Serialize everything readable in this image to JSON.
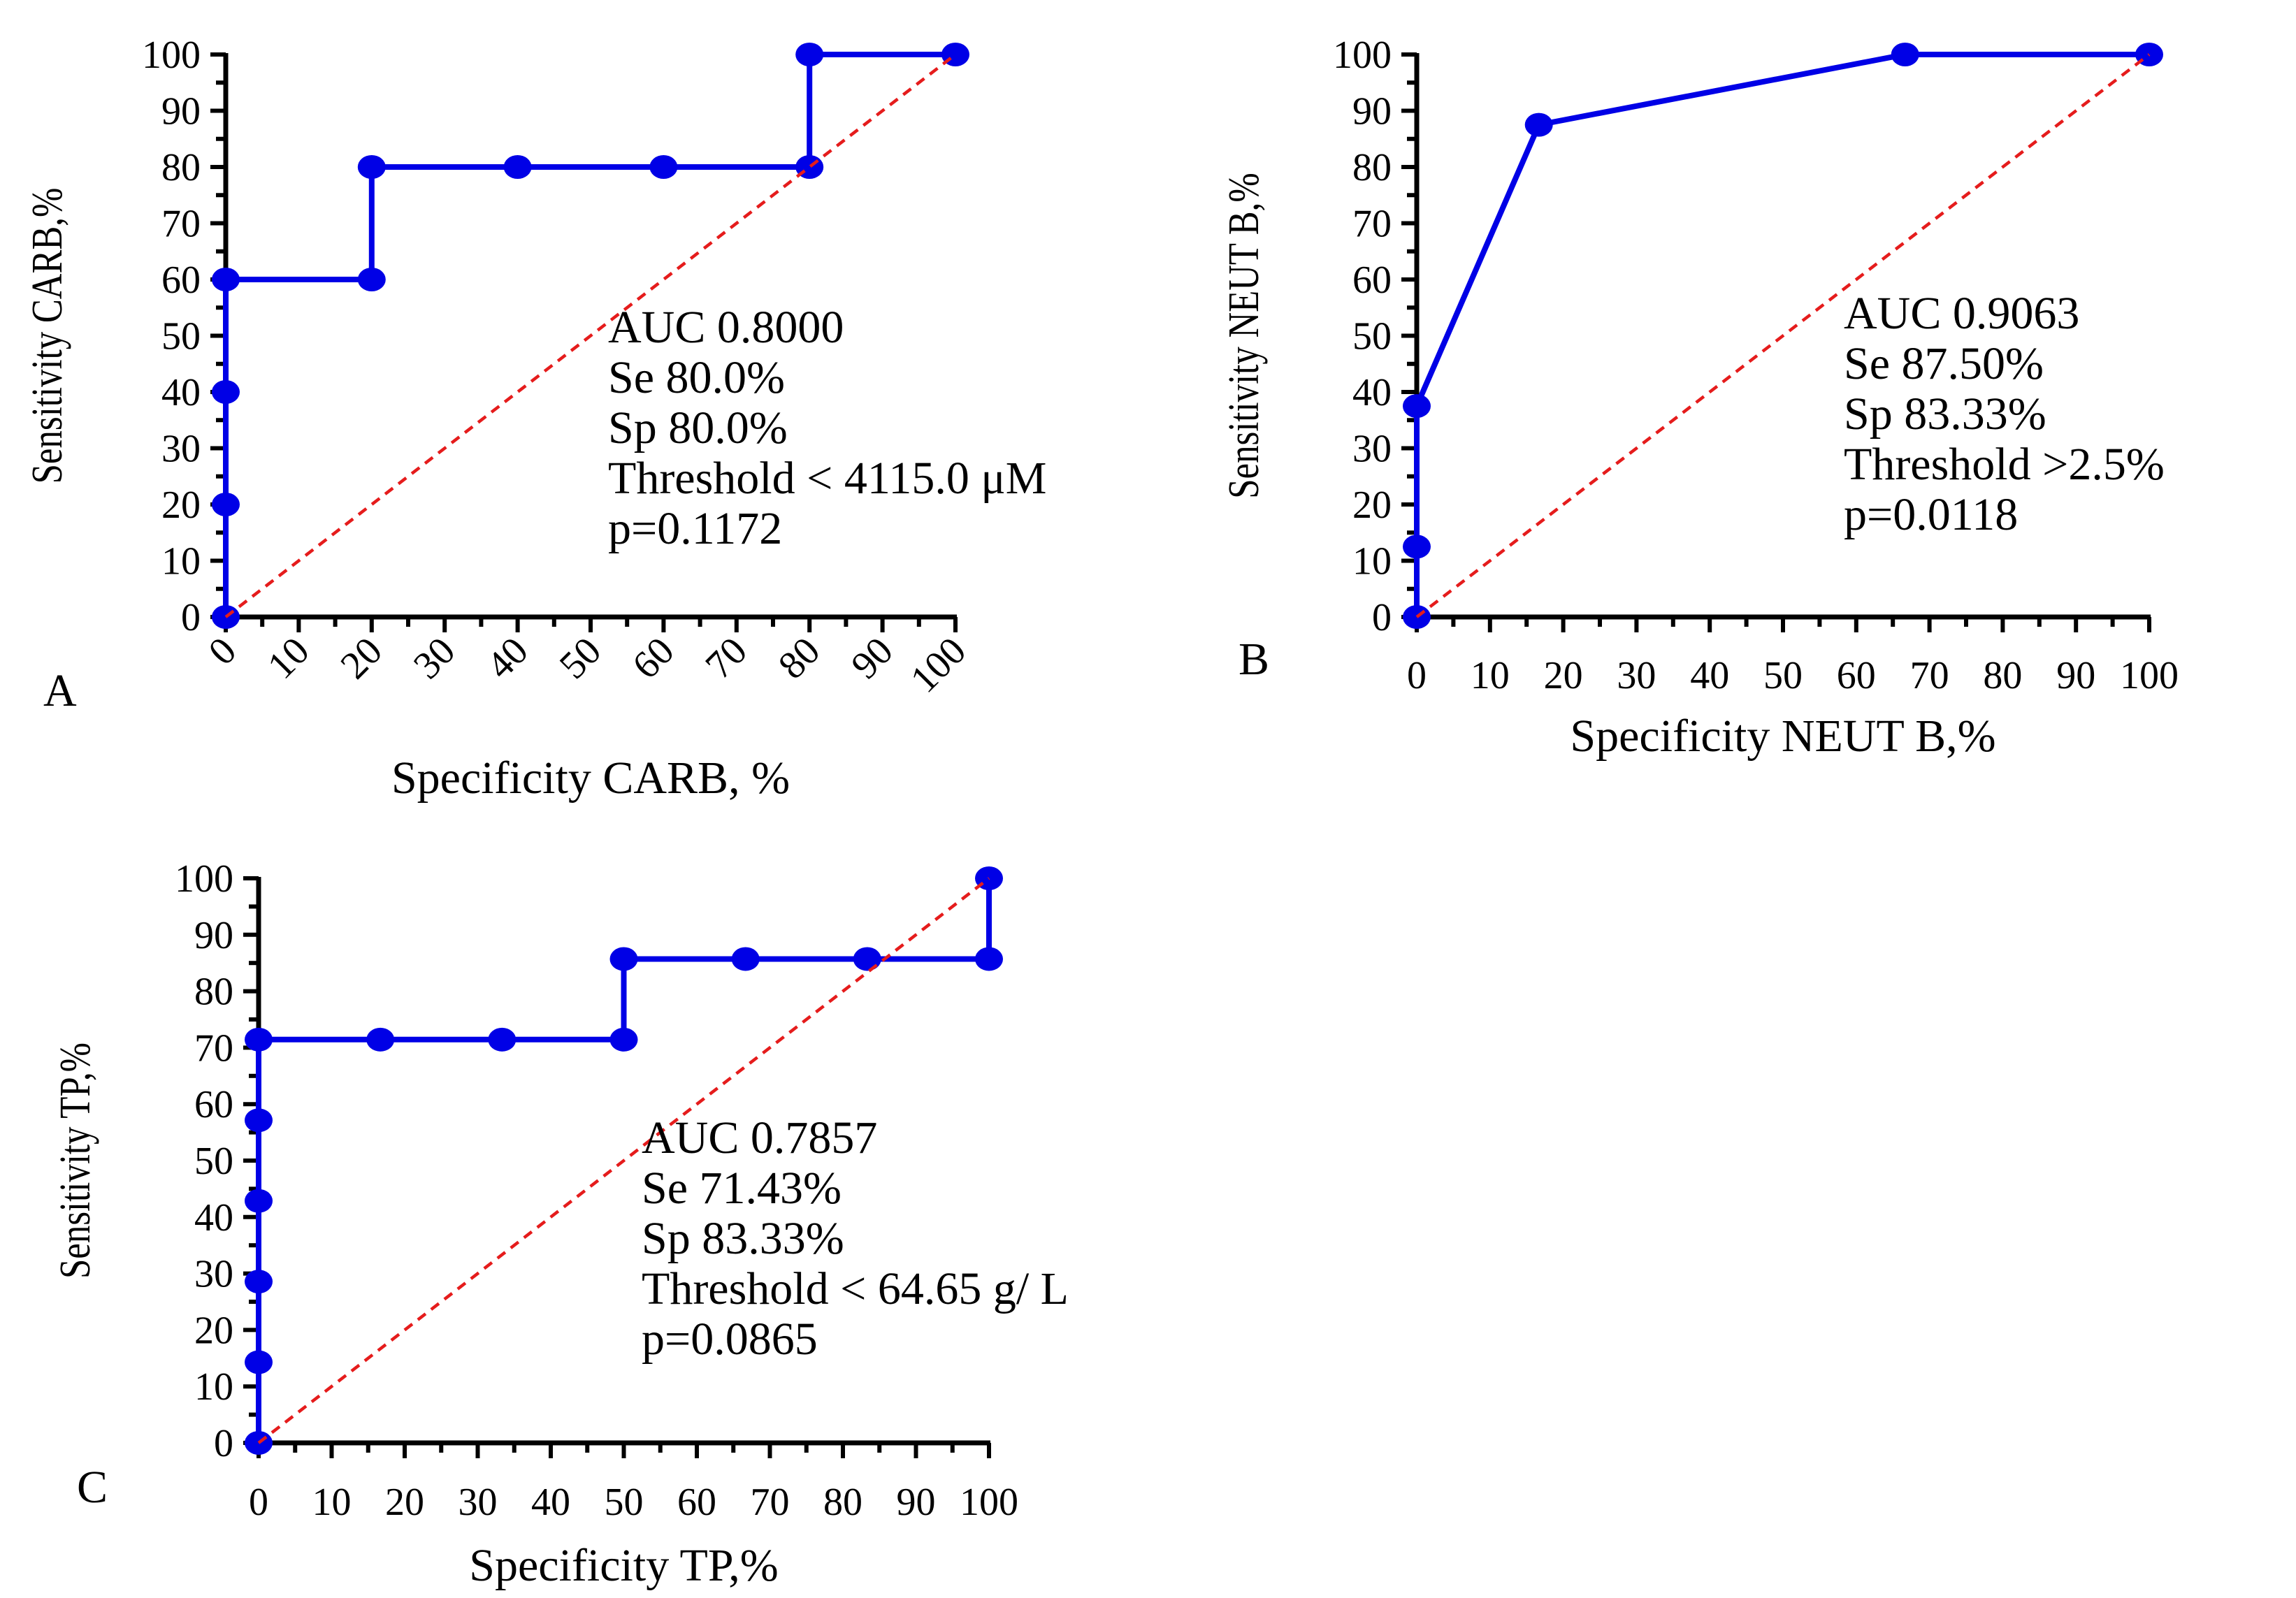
{
  "chart_data": [
    {
      "type": "line",
      "panel_label": "A",
      "title": "",
      "xlabel": "Specificity CARB, %",
      "ylabel": "Sensitivity CARB,%",
      "xlim": [
        0,
        100
      ],
      "ylim": [
        0,
        100
      ],
      "x_tick_labels": [
        "0",
        "10",
        "20",
        "30",
        "40",
        "50",
        "60",
        "70",
        "80",
        "90",
        "100"
      ],
      "y_tick_labels": [
        "0",
        "10",
        "20",
        "30",
        "40",
        "50",
        "60",
        "70",
        "80",
        "90",
        "100"
      ],
      "x_tick_rotated": true,
      "series": [
        {
          "name": "ROC curve",
          "color": "#0000e6",
          "x": [
            0,
            0,
            0,
            0,
            20,
            20,
            40,
            60,
            80,
            80,
            100
          ],
          "y": [
            0,
            20,
            40,
            60,
            60,
            80,
            80,
            80,
            80,
            100,
            100
          ]
        },
        {
          "name": "Reference line",
          "color": "#e51c1c",
          "style": "dashed",
          "x": [
            0,
            100
          ],
          "y": [
            0,
            100
          ]
        }
      ],
      "annotations": [
        "AUC 0.8000",
        "Se 80.0%",
        "Sp 80.0%",
        "Threshold  < 4115.0 μM",
        "p=0.1172"
      ]
    },
    {
      "type": "line",
      "panel_label": "B",
      "title": "",
      "xlabel": "Specificity NEUT B,%",
      "ylabel": "Sensitivity NEUT B,%",
      "xlim": [
        0,
        100
      ],
      "ylim": [
        0,
        100
      ],
      "x_tick_labels": [
        "0",
        "10",
        "20",
        "30",
        "40",
        "50",
        "60",
        "70",
        "80",
        "90",
        "100"
      ],
      "y_tick_labels": [
        "0",
        "10",
        "20",
        "30",
        "40",
        "50",
        "60",
        "70",
        "80",
        "90",
        "100"
      ],
      "x_tick_rotated": false,
      "series": [
        {
          "name": "ROC curve",
          "color": "#0000e6",
          "x": [
            0,
            0,
            0,
            16.67,
            66.67,
            100
          ],
          "y": [
            0,
            12.5,
            37.5,
            87.5,
            100,
            100
          ]
        },
        {
          "name": "Reference line",
          "color": "#e51c1c",
          "style": "dashed",
          "x": [
            0,
            100
          ],
          "y": [
            0,
            100
          ]
        }
      ],
      "annotations": [
        "AUC 0.9063",
        "Se 87.50%",
        "Sp 83.33%",
        "Threshold  >2.5%",
        "p=0.0118"
      ]
    },
    {
      "type": "line",
      "panel_label": "C",
      "title": "",
      "xlabel": "Specificity TP,%",
      "ylabel": "Sensitivity TP,%",
      "xlim": [
        0,
        100
      ],
      "ylim": [
        0,
        100
      ],
      "x_tick_labels": [
        "0",
        "10",
        "20",
        "30",
        "40",
        "50",
        "60",
        "70",
        "80",
        "90",
        "100"
      ],
      "y_tick_labels": [
        "0",
        "10",
        "20",
        "30",
        "40",
        "50",
        "60",
        "70",
        "80",
        "90",
        "100"
      ],
      "x_tick_rotated": false,
      "series": [
        {
          "name": "ROC curve",
          "color": "#0000e6",
          "x": [
            0,
            0,
            0,
            0,
            0,
            0,
            16.67,
            33.33,
            50,
            50,
            66.67,
            83.33,
            100,
            100
          ],
          "y": [
            0,
            14.29,
            28.57,
            42.86,
            57.14,
            71.43,
            71.43,
            71.43,
            71.43,
            85.71,
            85.71,
            85.71,
            85.71,
            100
          ]
        },
        {
          "name": "Reference line",
          "color": "#e51c1c",
          "style": "dashed",
          "x": [
            0,
            100
          ],
          "y": [
            0,
            100
          ]
        }
      ],
      "annotations": [
        "AUC 0.7857",
        "Se 71.43%",
        "Sp 83.33%",
        "Threshold < 64.65 g/ L",
        "p=0.0865"
      ]
    }
  ]
}
